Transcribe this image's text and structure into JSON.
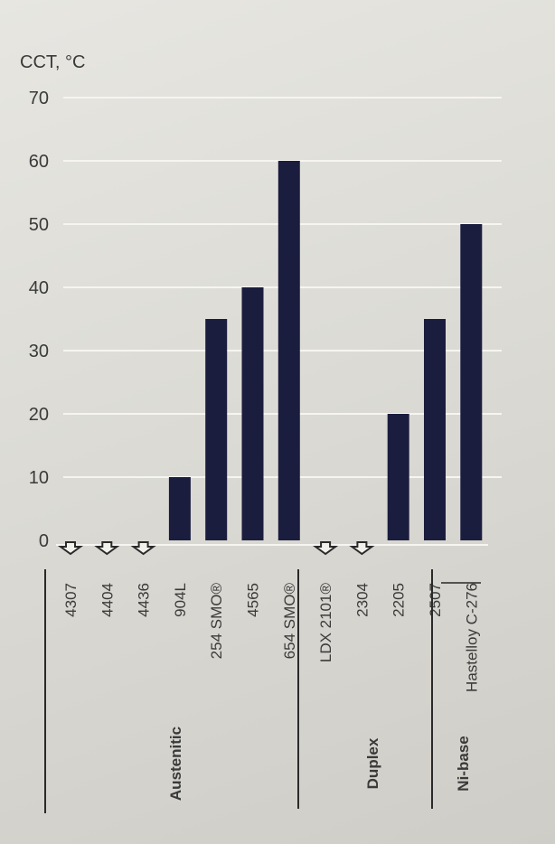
{
  "chart_data": {
    "type": "bar",
    "ylabel": "CCT, °C",
    "ylim": [
      0,
      70
    ],
    "yticks": [
      0,
      10,
      20,
      30,
      40,
      50,
      60,
      70
    ],
    "grid": true,
    "categories": [
      "4307",
      "4404",
      "4436",
      "904L",
      "254 SMO®",
      "4565",
      "654 SMO®",
      "LDX 2101®",
      "2304",
      "2205",
      "2507",
      "Hastelloy C-276"
    ],
    "values": [
      0,
      0,
      0,
      10,
      35,
      40,
      60,
      0,
      0,
      20,
      35,
      50
    ],
    "below_zero_markers": [
      "4307",
      "4404",
      "4436",
      "LDX 2101®",
      "2304"
    ],
    "groups": [
      {
        "name": "Austenitic",
        "categories": [
          "4307",
          "4404",
          "4436",
          "904L",
          "254 SMO®",
          "4565",
          "654 SMO®"
        ]
      },
      {
        "name": "Duplex",
        "categories": [
          "LDX 2101®",
          "2304",
          "2205",
          "2507"
        ]
      },
      {
        "name": "Ni-base",
        "categories": [
          "Hastelloy C-276"
        ]
      }
    ],
    "colors": {
      "bar": "#1b1d3f",
      "grid": "#f6f5f1",
      "text": "#3a3a3a",
      "marker": "#2a2a2a"
    }
  }
}
